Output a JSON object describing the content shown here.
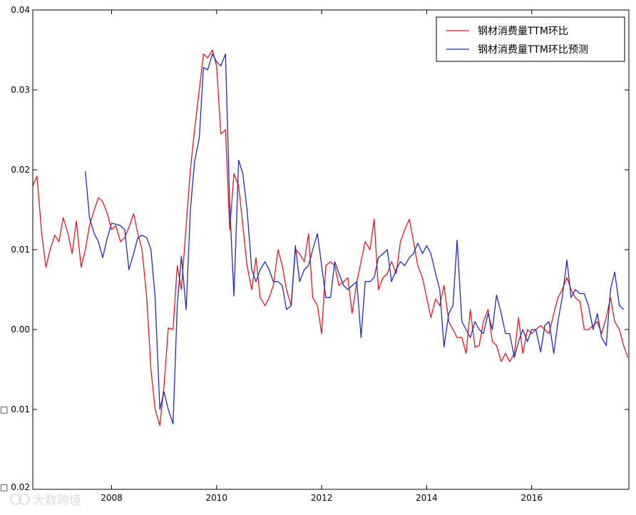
{
  "chart_data": {
    "type": "line",
    "title": "",
    "xlabel": "",
    "ylabel": "",
    "xlim": [
      2006.5,
      2017.85
    ],
    "ylim": [
      -0.02,
      0.04
    ],
    "x_ticks": [
      {
        "value": 2008,
        "label": "2008"
      },
      {
        "value": 2010,
        "label": "2010"
      },
      {
        "value": 2012,
        "label": "2012"
      },
      {
        "value": 2014,
        "label": "2014"
      },
      {
        "value": 2016,
        "label": "2016"
      }
    ],
    "y_ticks": [
      {
        "value": 0.04,
        "label": "0.04"
      },
      {
        "value": 0.03,
        "label": "0.03"
      },
      {
        "value": 0.02,
        "label": "0.02"
      },
      {
        "value": 0.01,
        "label": "0.01"
      },
      {
        "value": 0.0,
        "label": "0.00"
      },
      {
        "value": -0.01,
        "label": "\u0000 0.01"
      },
      {
        "value": -0.02,
        "label": "\u0000 0.02"
      }
    ],
    "grid": false,
    "legend_position": "top-right",
    "series": [
      {
        "name": "钢材消费量TTM环比",
        "color": "#e8141b",
        "points": [
          [
            2006.5,
            0.018
          ],
          [
            2006.58,
            0.0192
          ],
          [
            2006.67,
            0.012
          ],
          [
            2006.75,
            0.0078
          ],
          [
            2006.83,
            0.01
          ],
          [
            2006.92,
            0.0118
          ],
          [
            2007.0,
            0.011
          ],
          [
            2007.08,
            0.014
          ],
          [
            2007.17,
            0.012
          ],
          [
            2007.25,
            0.0095
          ],
          [
            2007.33,
            0.0136
          ],
          [
            2007.42,
            0.0078
          ],
          [
            2007.5,
            0.01
          ],
          [
            2007.58,
            0.013
          ],
          [
            2007.67,
            0.015
          ],
          [
            2007.75,
            0.0165
          ],
          [
            2007.83,
            0.016
          ],
          [
            2007.92,
            0.0145
          ],
          [
            2008.0,
            0.0125
          ],
          [
            2008.08,
            0.013
          ],
          [
            2008.17,
            0.011
          ],
          [
            2008.25,
            0.0115
          ],
          [
            2008.33,
            0.0128
          ],
          [
            2008.42,
            0.0145
          ],
          [
            2008.5,
            0.012
          ],
          [
            2008.58,
            0.01
          ],
          [
            2008.67,
            0.004
          ],
          [
            2008.75,
            -0.005
          ],
          [
            2008.83,
            -0.01
          ],
          [
            2008.92,
            -0.012
          ],
          [
            2009.0,
            -0.007
          ],
          [
            2009.08,
            0.0002
          ],
          [
            2009.17,
            0.0
          ],
          [
            2009.25,
            0.008
          ],
          [
            2009.33,
            0.005
          ],
          [
            2009.42,
            0.013
          ],
          [
            2009.5,
            0.02
          ],
          [
            2009.58,
            0.025
          ],
          [
            2009.67,
            0.03
          ],
          [
            2009.75,
            0.0345
          ],
          [
            2009.83,
            0.034
          ],
          [
            2009.92,
            0.035
          ],
          [
            2010.0,
            0.033
          ],
          [
            2010.08,
            0.0245
          ],
          [
            2010.17,
            0.025
          ],
          [
            2010.25,
            0.0125
          ],
          [
            2010.33,
            0.0195
          ],
          [
            2010.42,
            0.018
          ],
          [
            2010.5,
            0.013
          ],
          [
            2010.58,
            0.008
          ],
          [
            2010.67,
            0.005
          ],
          [
            2010.75,
            0.009
          ],
          [
            2010.83,
            0.004
          ],
          [
            2010.92,
            0.003
          ],
          [
            2011.0,
            0.004
          ],
          [
            2011.08,
            0.0055
          ],
          [
            2011.17,
            0.01
          ],
          [
            2011.25,
            0.008
          ],
          [
            2011.33,
            0.005
          ],
          [
            2011.42,
            0.003
          ],
          [
            2011.5,
            0.01
          ],
          [
            2011.58,
            0.0095
          ],
          [
            2011.67,
            0.0085
          ],
          [
            2011.75,
            0.012
          ],
          [
            2011.83,
            0.004
          ],
          [
            2011.92,
            0.003
          ],
          [
            2012.0,
            -0.0005
          ],
          [
            2012.08,
            0.008
          ],
          [
            2012.17,
            0.0085
          ],
          [
            2012.25,
            0.008
          ],
          [
            2012.33,
            0.0055
          ],
          [
            2012.42,
            0.006
          ],
          [
            2012.5,
            0.0065
          ],
          [
            2012.58,
            0.002
          ],
          [
            2012.67,
            0.006
          ],
          [
            2012.75,
            0.0085
          ],
          [
            2012.83,
            0.011
          ],
          [
            2012.92,
            0.01
          ],
          [
            2013.0,
            0.0138
          ],
          [
            2013.08,
            0.005
          ],
          [
            2013.17,
            0.0065
          ],
          [
            2013.25,
            0.007
          ],
          [
            2013.33,
            0.0085
          ],
          [
            2013.42,
            0.007
          ],
          [
            2013.5,
            0.011
          ],
          [
            2013.58,
            0.0125
          ],
          [
            2013.67,
            0.0138
          ],
          [
            2013.75,
            0.011
          ],
          [
            2013.83,
            0.008
          ],
          [
            2013.92,
            0.0065
          ],
          [
            2014.0,
            0.004
          ],
          [
            2014.08,
            0.0015
          ],
          [
            2014.17,
            0.0038
          ],
          [
            2014.25,
            0.003
          ],
          [
            2014.33,
            0.0055
          ],
          [
            2014.42,
            0.001
          ],
          [
            2014.5,
            0.0
          ],
          [
            2014.58,
            -0.001
          ],
          [
            2014.67,
            -0.001
          ],
          [
            2014.75,
            -0.003
          ],
          [
            2014.83,
            0.0025
          ],
          [
            2014.92,
            -0.0022
          ],
          [
            2015.0,
            -0.002
          ],
          [
            2015.08,
            0.001
          ],
          [
            2015.17,
            0.0025
          ],
          [
            2015.25,
            -0.0015
          ],
          [
            2015.33,
            -0.002
          ],
          [
            2015.42,
            -0.004
          ],
          [
            2015.5,
            -0.003
          ],
          [
            2015.58,
            -0.004
          ],
          [
            2015.67,
            -0.003
          ],
          [
            2015.75,
            0.0015
          ],
          [
            2015.83,
            -0.003
          ],
          [
            2015.92,
            0.0
          ],
          [
            2016.0,
            -0.0005
          ],
          [
            2016.08,
            0.0
          ],
          [
            2016.17,
            0.0005
          ],
          [
            2016.25,
            0.0
          ],
          [
            2016.33,
            -0.0005
          ],
          [
            2016.42,
            0.002
          ],
          [
            2016.5,
            0.004
          ],
          [
            2016.58,
            0.005
          ],
          [
            2016.67,
            0.0065
          ],
          [
            2016.75,
            0.005
          ],
          [
            2016.83,
            0.004
          ],
          [
            2016.92,
            0.0035
          ],
          [
            2017.0,
            0.0
          ],
          [
            2017.08,
            0.0
          ],
          [
            2017.17,
            0.0005
          ],
          [
            2017.25,
            0.001
          ],
          [
            2017.33,
            -0.0005
          ],
          [
            2017.42,
            0.0015
          ],
          [
            2017.5,
            0.004
          ],
          [
            2017.58,
            0.001
          ],
          [
            2017.67,
            0.0
          ],
          [
            2017.75,
            -0.002
          ],
          [
            2017.83,
            -0.0035
          ]
        ]
      },
      {
        "name": "钢材消费量TTM环比预测",
        "color": "#1f2bbd",
        "points": [
          [
            2007.5,
            0.0198
          ],
          [
            2007.58,
            0.014
          ],
          [
            2007.67,
            0.012
          ],
          [
            2007.75,
            0.011
          ],
          [
            2007.83,
            0.009
          ],
          [
            2007.92,
            0.0115
          ],
          [
            2008.0,
            0.0133
          ],
          [
            2008.08,
            0.0132
          ],
          [
            2008.17,
            0.013
          ],
          [
            2008.25,
            0.0125
          ],
          [
            2008.33,
            0.0075
          ],
          [
            2008.42,
            0.0095
          ],
          [
            2008.5,
            0.0115
          ],
          [
            2008.58,
            0.0118
          ],
          [
            2008.67,
            0.0115
          ],
          [
            2008.75,
            0.01
          ],
          [
            2008.83,
            0.004
          ],
          [
            2008.92,
            -0.01
          ],
          [
            2009.0,
            -0.0078
          ],
          [
            2009.08,
            -0.01
          ],
          [
            2009.17,
            -0.0118
          ],
          [
            2009.25,
            0.003
          ],
          [
            2009.33,
            0.0092
          ],
          [
            2009.42,
            0.0025
          ],
          [
            2009.5,
            0.015
          ],
          [
            2009.58,
            0.021
          ],
          [
            2009.67,
            0.024
          ],
          [
            2009.75,
            0.0328
          ],
          [
            2009.83,
            0.0325
          ],
          [
            2009.92,
            0.0345
          ],
          [
            2010.0,
            0.0335
          ],
          [
            2010.08,
            0.033
          ],
          [
            2010.17,
            0.0345
          ],
          [
            2010.25,
            0.0155
          ],
          [
            2010.33,
            0.0042
          ],
          [
            2010.42,
            0.0212
          ],
          [
            2010.5,
            0.0195
          ],
          [
            2010.58,
            0.015
          ],
          [
            2010.67,
            0.0075
          ],
          [
            2010.75,
            0.006
          ],
          [
            2010.83,
            0.0075
          ],
          [
            2010.92,
            0.0085
          ],
          [
            2011.0,
            0.0075
          ],
          [
            2011.08,
            0.006
          ],
          [
            2011.17,
            0.006
          ],
          [
            2011.25,
            0.0055
          ],
          [
            2011.33,
            0.0025
          ],
          [
            2011.42,
            0.003
          ],
          [
            2011.5,
            0.0105
          ],
          [
            2011.58,
            0.006
          ],
          [
            2011.67,
            0.0075
          ],
          [
            2011.75,
            0.008
          ],
          [
            2011.83,
            0.01
          ],
          [
            2011.92,
            0.012
          ],
          [
            2012.0,
            0.008
          ],
          [
            2012.08,
            0.004
          ],
          [
            2012.17,
            0.004
          ],
          [
            2012.25,
            0.0085
          ],
          [
            2012.33,
            0.007
          ],
          [
            2012.42,
            0.0055
          ],
          [
            2012.5,
            0.005
          ],
          [
            2012.58,
            0.0055
          ],
          [
            2012.67,
            0.006
          ],
          [
            2012.75,
            -0.001
          ],
          [
            2012.83,
            0.006
          ],
          [
            2012.92,
            0.006
          ],
          [
            2013.0,
            0.0065
          ],
          [
            2013.08,
            0.009
          ],
          [
            2013.17,
            0.0095
          ],
          [
            2013.25,
            0.01
          ],
          [
            2013.33,
            0.006
          ],
          [
            2013.42,
            0.0075
          ],
          [
            2013.5,
            0.0085
          ],
          [
            2013.58,
            0.008
          ],
          [
            2013.67,
            0.009
          ],
          [
            2013.75,
            0.0095
          ],
          [
            2013.83,
            0.0108
          ],
          [
            2013.92,
            0.0095
          ],
          [
            2014.0,
            0.0105
          ],
          [
            2014.08,
            0.0095
          ],
          [
            2014.17,
            0.007
          ],
          [
            2014.25,
            0.005
          ],
          [
            2014.33,
            -0.0022
          ],
          [
            2014.42,
            0.002
          ],
          [
            2014.5,
            0.003
          ],
          [
            2014.58,
            0.0112
          ],
          [
            2014.67,
            0.001
          ],
          [
            2014.75,
            0.0
          ],
          [
            2014.83,
            -0.001
          ],
          [
            2014.92,
            0.001
          ],
          [
            2015.0,
            0.0
          ],
          [
            2015.08,
            -0.0005
          ],
          [
            2015.17,
            0.002
          ],
          [
            2015.25,
            0.0
          ],
          [
            2015.33,
            0.0043
          ],
          [
            2015.42,
            0.002
          ],
          [
            2015.5,
            -0.0005
          ],
          [
            2015.58,
            -0.0005
          ],
          [
            2015.67,
            -0.0035
          ],
          [
            2015.75,
            -0.0015
          ],
          [
            2015.83,
            0.0
          ],
          [
            2015.92,
            -0.0015
          ],
          [
            2016.0,
            0.0
          ],
          [
            2016.08,
            0.0
          ],
          [
            2016.17,
            -0.0028
          ],
          [
            2016.25,
            0.0005
          ],
          [
            2016.33,
            0.001
          ],
          [
            2016.42,
            -0.003
          ],
          [
            2016.5,
            0.001
          ],
          [
            2016.58,
            0.004
          ],
          [
            2016.67,
            0.0087
          ],
          [
            2016.75,
            0.004
          ],
          [
            2016.83,
            0.005
          ],
          [
            2016.92,
            0.0045
          ],
          [
            2017.0,
            0.0045
          ],
          [
            2017.08,
            0.003
          ],
          [
            2017.17,
            0.0
          ],
          [
            2017.25,
            0.002
          ],
          [
            2017.33,
            -0.001
          ],
          [
            2017.42,
            -0.002
          ],
          [
            2017.5,
            0.005
          ],
          [
            2017.58,
            0.0072
          ],
          [
            2017.67,
            0.003
          ],
          [
            2017.75,
            0.0025
          ]
        ]
      }
    ],
    "watermark": "大数跨境"
  }
}
